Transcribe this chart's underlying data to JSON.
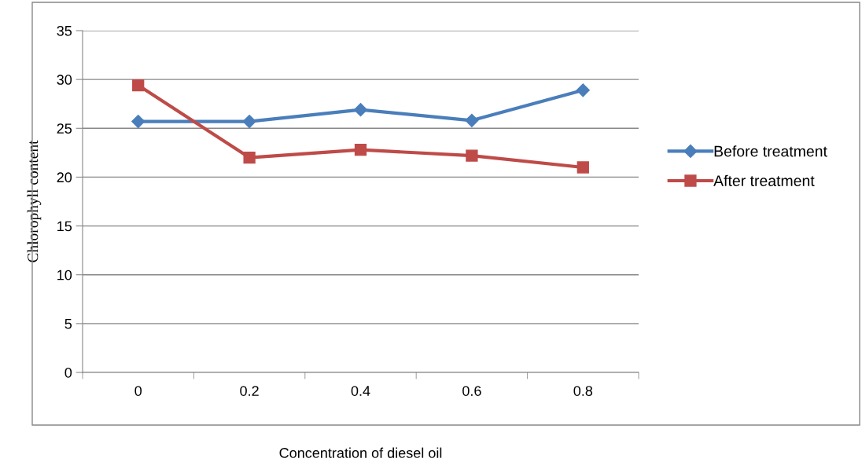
{
  "chart_data": {
    "type": "line",
    "xlabel": "Concentration of diesel oil",
    "ylabel": "Chlorophyll content",
    "categories": [
      "0",
      "0.2",
      "0.4",
      "0.6",
      "0.8"
    ],
    "series": [
      {
        "name": "Before treatment",
        "color": "#4a7ebb",
        "marker": "diamond",
        "values": [
          25.7,
          25.7,
          26.9,
          25.8,
          28.9
        ]
      },
      {
        "name": "After treatment",
        "color": "#be4b48",
        "marker": "square",
        "values": [
          29.4,
          22.0,
          22.8,
          22.2,
          21.0
        ]
      }
    ],
    "ylim": [
      0,
      35
    ],
    "yticks": [
      0,
      5,
      10,
      15,
      20,
      25,
      30,
      35
    ],
    "grid": "y",
    "legend": "right"
  }
}
